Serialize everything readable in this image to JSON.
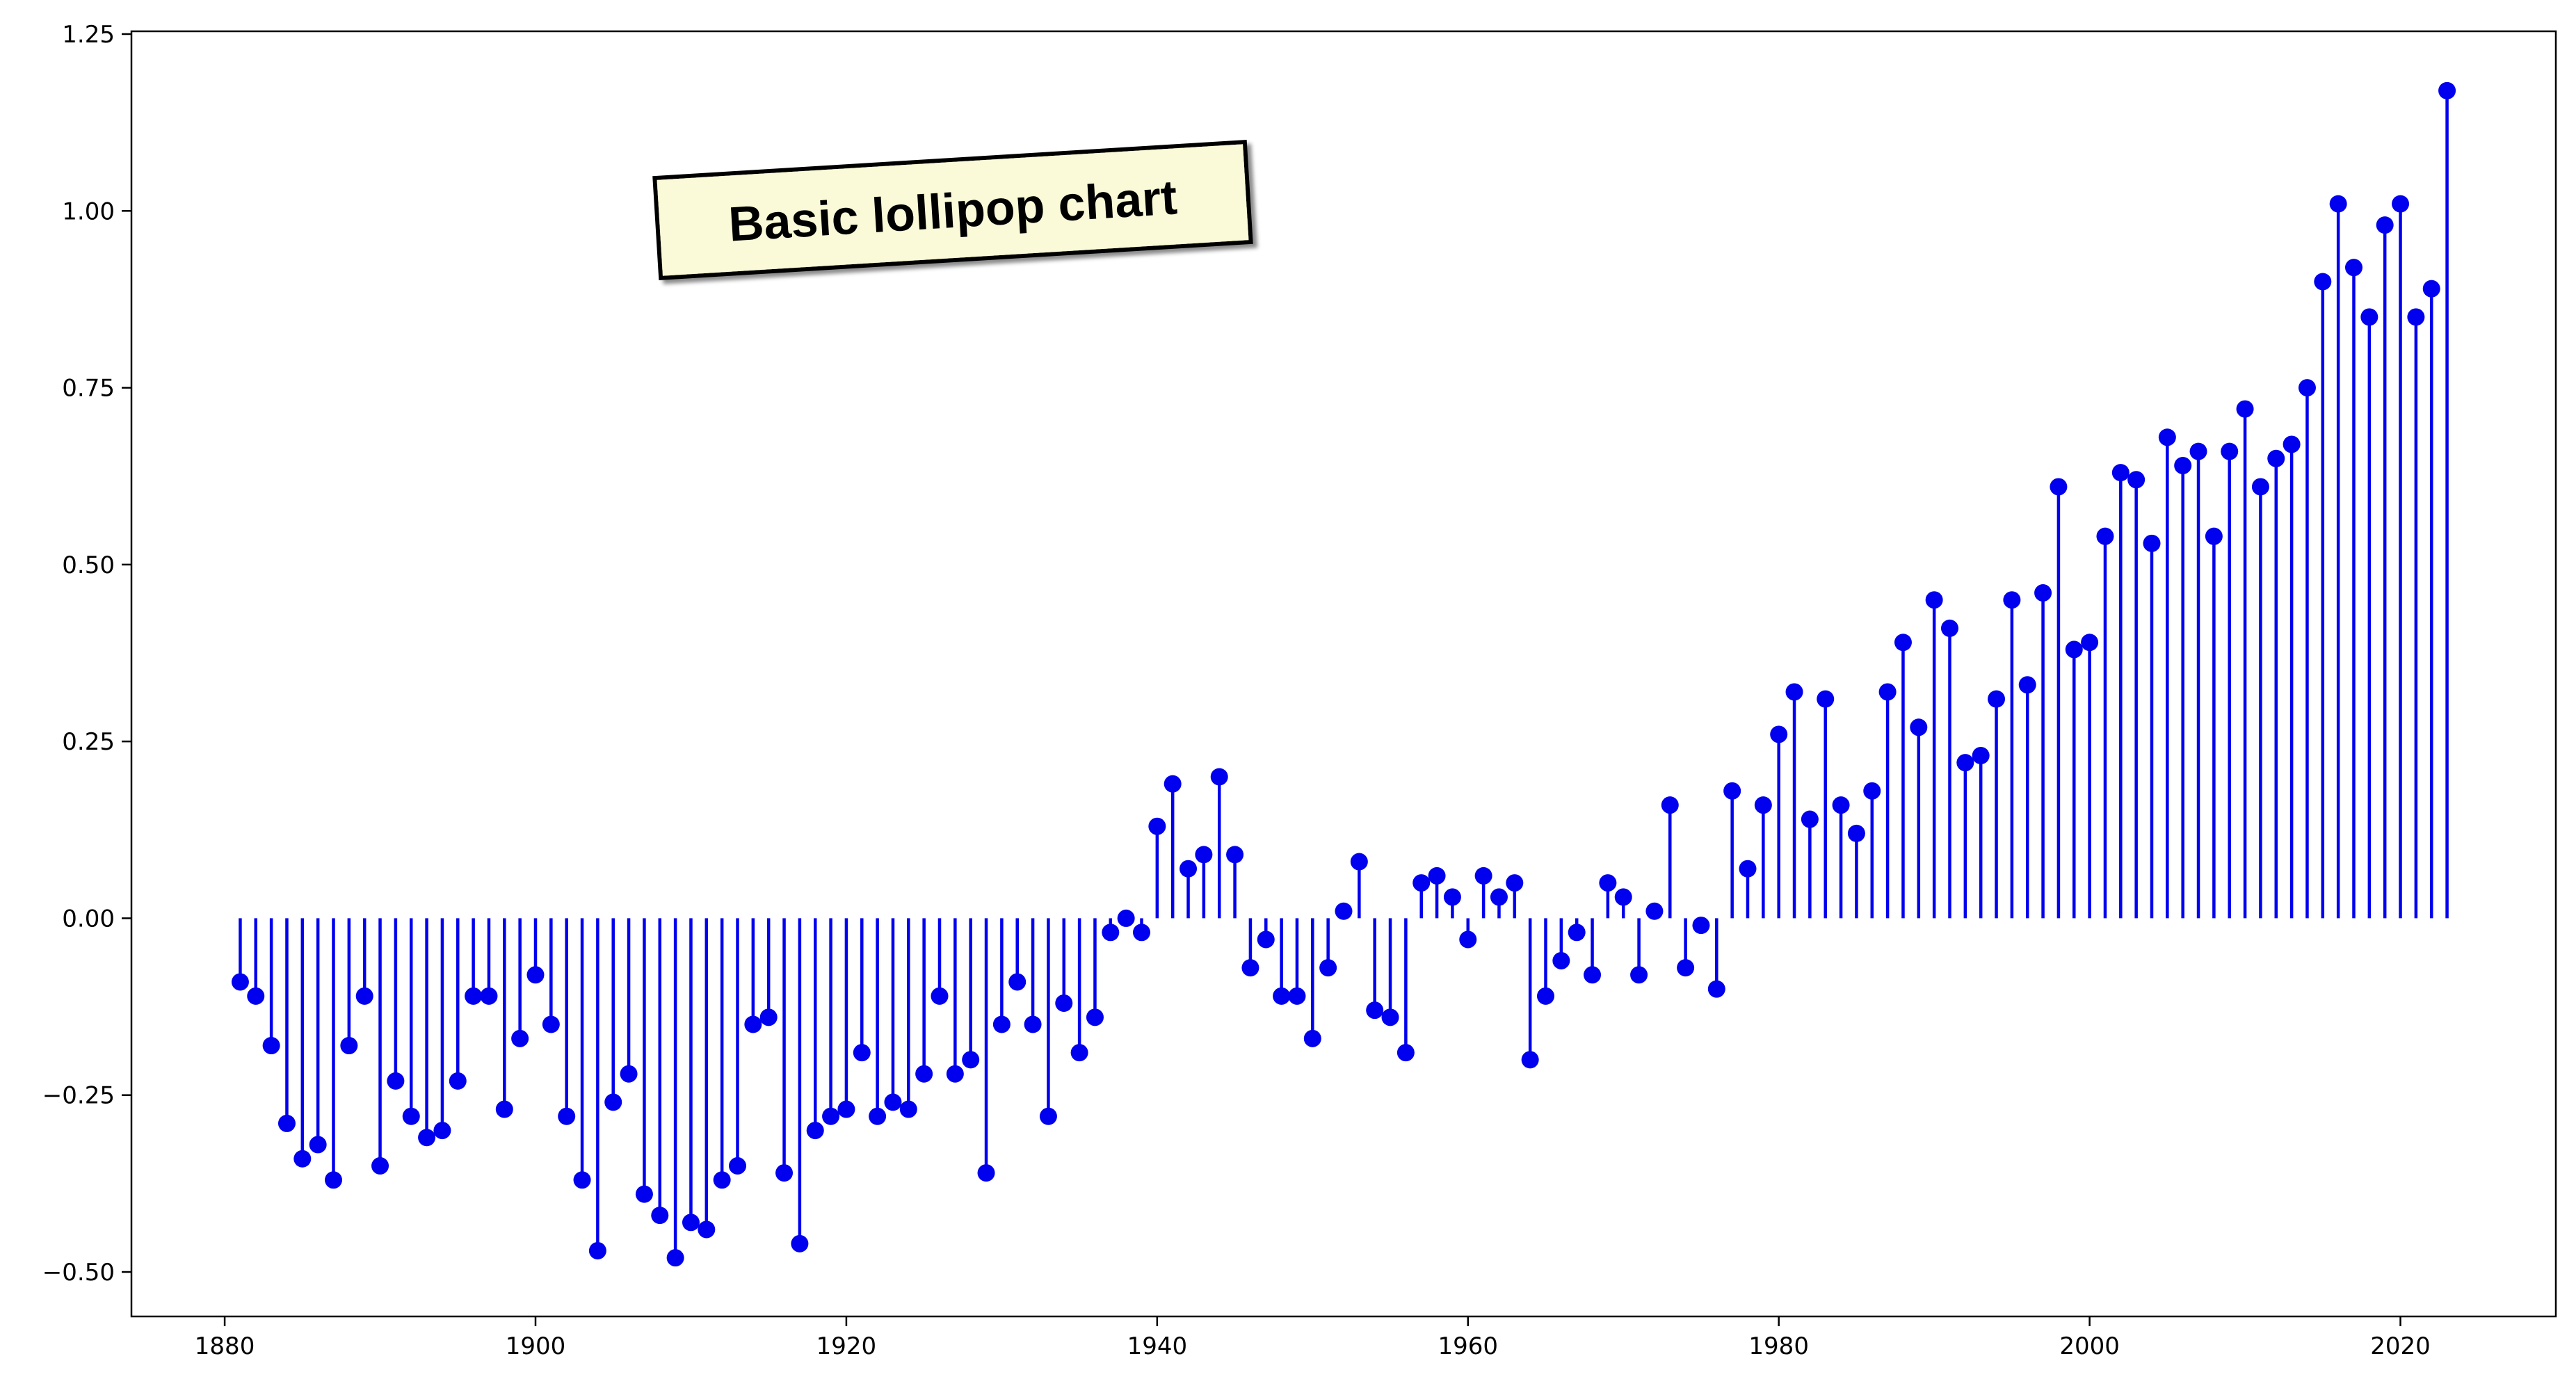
{
  "chart_data": {
    "type": "lollipop",
    "title": "Basic lollipop chart",
    "xlabel": "",
    "ylabel": "",
    "xlim": [
      1874,
      2030
    ],
    "ylim": [
      -0.5,
      1.25
    ],
    "baseline": 0.0,
    "grid": false,
    "legend": "none",
    "x_ticks": [
      {
        "value": 1880,
        "label": "1880"
      },
      {
        "value": 1900,
        "label": "1900"
      },
      {
        "value": 1920,
        "label": "1920"
      },
      {
        "value": 1940,
        "label": "1940"
      },
      {
        "value": 1960,
        "label": "1960"
      },
      {
        "value": 1980,
        "label": "1980"
      },
      {
        "value": 2000,
        "label": "2000"
      },
      {
        "value": 2020,
        "label": "2020"
      }
    ],
    "y_ticks": [
      {
        "value": -0.5,
        "label": "−0.50"
      },
      {
        "value": -0.25,
        "label": "−0.25"
      },
      {
        "value": 0.0,
        "label": "0.00"
      },
      {
        "value": 0.25,
        "label": "0.25"
      },
      {
        "value": 0.5,
        "label": "0.50"
      },
      {
        "value": 0.75,
        "label": "0.75"
      },
      {
        "value": 1.0,
        "label": "1.00"
      },
      {
        "value": 1.25,
        "label": "1.25"
      }
    ],
    "x": [
      1881,
      1882,
      1883,
      1884,
      1885,
      1886,
      1887,
      1888,
      1889,
      1890,
      1891,
      1892,
      1893,
      1894,
      1895,
      1896,
      1897,
      1898,
      1899,
      1900,
      1901,
      1902,
      1903,
      1904,
      1905,
      1906,
      1907,
      1908,
      1909,
      1910,
      1911,
      1912,
      1913,
      1914,
      1915,
      1916,
      1917,
      1918,
      1919,
      1920,
      1921,
      1922,
      1923,
      1924,
      1925,
      1926,
      1927,
      1928,
      1929,
      1930,
      1931,
      1932,
      1933,
      1934,
      1935,
      1936,
      1937,
      1938,
      1939,
      1940,
      1941,
      1942,
      1943,
      1944,
      1945,
      1946,
      1947,
      1948,
      1949,
      1950,
      1951,
      1952,
      1953,
      1954,
      1955,
      1956,
      1957,
      1958,
      1959,
      1960,
      1961,
      1962,
      1963,
      1964,
      1965,
      1966,
      1967,
      1968,
      1969,
      1970,
      1971,
      1972,
      1973,
      1974,
      1975,
      1976,
      1977,
      1978,
      1979,
      1980,
      1981,
      1982,
      1983,
      1984,
      1985,
      1986,
      1987,
      1988,
      1989,
      1990,
      1991,
      1992,
      1993,
      1994,
      1995,
      1996,
      1997,
      1998,
      1999,
      2000,
      2001,
      2002,
      2003,
      2004,
      2005,
      2006,
      2007,
      2008,
      2009,
      2010,
      2011,
      2012,
      2013,
      2014,
      2015,
      2016,
      2017,
      2018,
      2019,
      2020,
      2021,
      2022,
      2023
    ],
    "y": [
      -0.09,
      -0.11,
      -0.18,
      -0.29,
      -0.34,
      -0.32,
      -0.37,
      -0.18,
      -0.11,
      -0.35,
      -0.23,
      -0.28,
      -0.31,
      -0.3,
      -0.23,
      -0.11,
      -0.11,
      -0.27,
      -0.17,
      -0.08,
      -0.15,
      -0.28,
      -0.37,
      -0.47,
      -0.26,
      -0.22,
      -0.39,
      -0.42,
      -0.48,
      -0.43,
      -0.44,
      -0.37,
      -0.35,
      -0.15,
      -0.14,
      -0.36,
      -0.46,
      -0.3,
      -0.28,
      -0.27,
      -0.19,
      -0.28,
      -0.26,
      -0.27,
      -0.22,
      -0.11,
      -0.22,
      -0.2,
      -0.36,
      -0.15,
      -0.09,
      -0.15,
      -0.28,
      -0.12,
      -0.19,
      -0.14,
      -0.02,
      0.0,
      -0.02,
      0.13,
      0.19,
      0.07,
      0.09,
      0.2,
      0.09,
      -0.07,
      -0.03,
      -0.11,
      -0.11,
      -0.17,
      -0.07,
      0.01,
      0.08,
      -0.13,
      -0.14,
      -0.19,
      0.05,
      0.06,
      0.03,
      -0.03,
      0.06,
      0.03,
      0.05,
      -0.2,
      -0.11,
      -0.06,
      -0.02,
      -0.08,
      0.05,
      0.03,
      -0.08,
      0.01,
      0.16,
      -0.07,
      -0.01,
      -0.1,
      0.18,
      0.07,
      0.16,
      0.26,
      0.32,
      0.14,
      0.31,
      0.16,
      0.12,
      0.18,
      0.32,
      0.39,
      0.27,
      0.45,
      0.41,
      0.22,
      0.23,
      0.31,
      0.45,
      0.33,
      0.46,
      0.61,
      0.38,
      0.39,
      0.54,
      0.63,
      0.62,
      0.53,
      0.68,
      0.64,
      0.66,
      0.54,
      0.66,
      0.72,
      0.61,
      0.65,
      0.67,
      0.75,
      0.9,
      1.01,
      0.92,
      0.85,
      0.98,
      1.01,
      0.85,
      0.89,
      1.17
    ],
    "colors": {
      "stem": "#0000ee",
      "marker": "#0000ee",
      "title_box_fill": "#fafad8",
      "title_box_edge": "#000000"
    }
  }
}
